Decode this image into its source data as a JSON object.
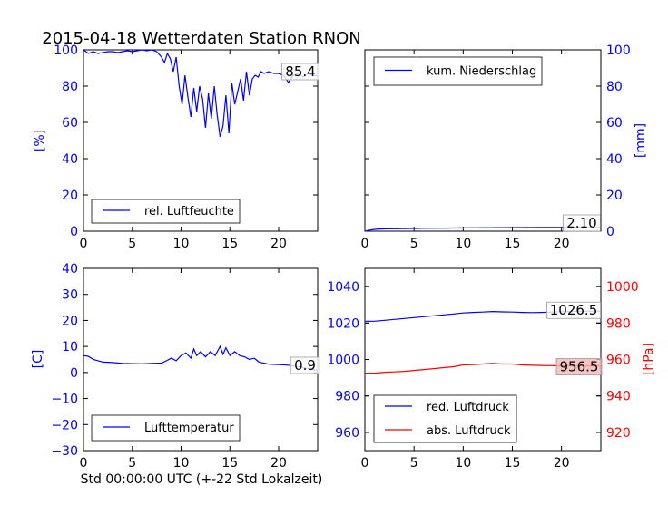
{
  "page": {
    "title": "2015-04-18 Wetterdaten Station RNON",
    "xlabel": "Std 00:00:00 UTC (+-22 Std Lokalzeit)"
  },
  "colors": {
    "blue": "#0000ff",
    "red": "#ff0000",
    "label_box_red": "#f4b8b8"
  },
  "chart_data": [
    {
      "id": "humidity",
      "type": "line",
      "xlim": [
        0,
        24
      ],
      "ylim": [
        0,
        100
      ],
      "xticks": [
        "0",
        "5",
        "10",
        "15",
        "20"
      ],
      "yticks": [
        "0",
        "20",
        "40",
        "60",
        "80",
        "100"
      ],
      "ylabel": "[%]",
      "yaxis_side": "left",
      "ytick_color": "#0000ff",
      "series": [
        {
          "name": "rel. Luftfeuchte",
          "color": "#0000ff",
          "x": [
            0,
            0.5,
            1,
            1.5,
            2,
            2.5,
            3,
            3.5,
            4,
            4.5,
            5,
            5.5,
            6,
            6.5,
            7,
            7.5,
            8,
            8.3,
            8.6,
            8.9,
            9.2,
            9.5,
            9.8,
            10.1,
            10.4,
            10.7,
            11.0,
            11.3,
            11.6,
            11.9,
            12.2,
            12.5,
            12.8,
            13.1,
            13.4,
            13.7,
            14.0,
            14.3,
            14.6,
            14.9,
            15.2,
            15.5,
            15.8,
            16.1,
            16.4,
            16.7,
            17.0,
            17.3,
            17.6,
            17.9,
            18.2,
            18.5,
            19,
            19.5,
            20,
            20.5,
            21,
            21.5,
            22,
            22.5,
            23,
            23.5,
            24
          ],
          "y": [
            100,
            98,
            99,
            98,
            98.5,
            99,
            99,
            98.5,
            99,
            99.5,
            99,
            99.5,
            100,
            99.5,
            100,
            99,
            96,
            93,
            98,
            95,
            88,
            96,
            80,
            70,
            86,
            74,
            63,
            79,
            66,
            80,
            73,
            57,
            76,
            62,
            80,
            64,
            52,
            58,
            75,
            54,
            82,
            70,
            77,
            84,
            72,
            88,
            75,
            84,
            86,
            85,
            88,
            87,
            88,
            87,
            87,
            86,
            82,
            86,
            87,
            85,
            87,
            86,
            85.4
          ]
        }
      ],
      "legend": {
        "entries": [
          "rel. Luftfeuchte"
        ],
        "placement": "lower-left"
      },
      "value_label": {
        "text": "85.4",
        "placement": "upper-right"
      }
    },
    {
      "id": "precipitation",
      "type": "line",
      "xlim": [
        0,
        24
      ],
      "ylim": [
        0,
        100
      ],
      "xticks": [
        "0",
        "5",
        "10",
        "15",
        "20"
      ],
      "yticks": [
        "0",
        "20",
        "40",
        "60",
        "80",
        "100"
      ],
      "ylabel": "[mm]",
      "yaxis_side": "right",
      "ytick_color": "#0000ff",
      "series": [
        {
          "name": "kum. Niederschlag",
          "color": "#0000ff",
          "x": [
            0,
            0.5,
            1,
            1.5,
            2,
            4,
            6,
            8,
            10,
            12,
            14,
            16,
            18,
            20,
            22,
            24
          ],
          "y": [
            0,
            0.6,
            1.0,
            1.2,
            1.3,
            1.45,
            1.6,
            1.7,
            1.8,
            1.9,
            1.95,
            2.0,
            2.05,
            2.08,
            2.1,
            2.1
          ]
        }
      ],
      "legend": {
        "entries": [
          "kum. Niederschlag"
        ],
        "placement": "upper-left"
      },
      "value_label": {
        "text": "2.10",
        "placement": "lower-right"
      }
    },
    {
      "id": "temperature",
      "type": "line",
      "xlim": [
        0,
        24
      ],
      "ylim": [
        -30,
        40
      ],
      "xticks": [
        "0",
        "5",
        "10",
        "15",
        "20"
      ],
      "yticks": [
        "−30",
        "−20",
        "−10",
        "0",
        "10",
        "20",
        "30",
        "40"
      ],
      "ylabel": "[C]",
      "yaxis_side": "left",
      "ytick_color": "#0000ff",
      "series": [
        {
          "name": "Lufttemperatur",
          "color": "#0000ff",
          "x": [
            0,
            0.5,
            1,
            1.5,
            2,
            3,
            4,
            5,
            6,
            7,
            8,
            8.5,
            9,
            9.5,
            10,
            10.5,
            11,
            11.3,
            11.6,
            12,
            12.5,
            13,
            13.5,
            14,
            14.3,
            14.6,
            15,
            15.5,
            16,
            16.5,
            17,
            17.5,
            18,
            19,
            20,
            21,
            22,
            23,
            24
          ],
          "y": [
            6.5,
            6.2,
            5,
            4.5,
            4,
            3.8,
            3.5,
            3.4,
            3.3,
            3.5,
            3.6,
            4.5,
            5.5,
            4.5,
            6.5,
            7.5,
            5.5,
            9,
            6.5,
            8,
            6,
            8,
            6.5,
            10,
            7,
            9.5,
            6.5,
            8,
            6.5,
            6,
            5,
            5.5,
            4,
            3.2,
            3,
            2.8,
            2.2,
            1.5,
            0.9
          ]
        }
      ],
      "legend": {
        "entries": [
          "Lufttemperatur"
        ],
        "placement": "lower-left"
      },
      "value_label": {
        "text": "0.9",
        "placement": "right"
      }
    },
    {
      "id": "pressure",
      "type": "line",
      "xlim": [
        0,
        24
      ],
      "ylim": [
        950,
        1050
      ],
      "ylim_right": [
        910,
        1010
      ],
      "xticks": [
        "0",
        "5",
        "10",
        "15",
        "20"
      ],
      "yticks": [
        "960",
        "980",
        "1000",
        "1020",
        "1040"
      ],
      "yticks_right": [
        "920",
        "940",
        "960",
        "980",
        "1000"
      ],
      "ylabel": "[hPa]",
      "ylabel_color": "#ff0000",
      "yaxis_side": "both",
      "ytick_color": "#0000ff",
      "ytick_color_right": "#ff0000",
      "series": [
        {
          "name": "red. Luftdruck",
          "color": "#0000ff",
          "axis": "left",
          "x": [
            0,
            1,
            2,
            3,
            4,
            5,
            6,
            7,
            8,
            9,
            10,
            11,
            12,
            13,
            14,
            15,
            16,
            17,
            18,
            19,
            20,
            21,
            22,
            23,
            24
          ],
          "y": [
            1021,
            1021,
            1021.5,
            1022,
            1022.5,
            1023,
            1023.5,
            1024,
            1024.5,
            1025,
            1025.5,
            1025.8,
            1026,
            1026.3,
            1026.1,
            1026,
            1025.8,
            1025.7,
            1025.8,
            1026,
            1026.2,
            1026.3,
            1026.4,
            1026.5,
            1026.5
          ]
        },
        {
          "name": "abs. Luftdruck",
          "color": "#ff0000",
          "axis": "right",
          "x": [
            0,
            1,
            2,
            3,
            4,
            5,
            6,
            7,
            8,
            9,
            10,
            11,
            12,
            13,
            14,
            15,
            16,
            17,
            18,
            19,
            20,
            21,
            22,
            23,
            24
          ],
          "y": [
            952.5,
            952.5,
            953,
            953.2,
            953.5,
            954,
            954.5,
            955,
            955.5,
            956,
            957,
            957.2,
            957.5,
            957.8,
            957.5,
            957.5,
            957,
            956.8,
            956.7,
            956.6,
            956.5,
            956.5,
            956.5,
            956.5,
            956.5
          ]
        }
      ],
      "legend": {
        "entries": [
          "red. Luftdruck",
          "abs. Luftdruck"
        ],
        "placement": "lower-left"
      },
      "value_labels": [
        {
          "text": "1026.5",
          "series": "red. Luftdruck"
        },
        {
          "text": "956.5",
          "series": "abs. Luftdruck"
        }
      ]
    }
  ]
}
